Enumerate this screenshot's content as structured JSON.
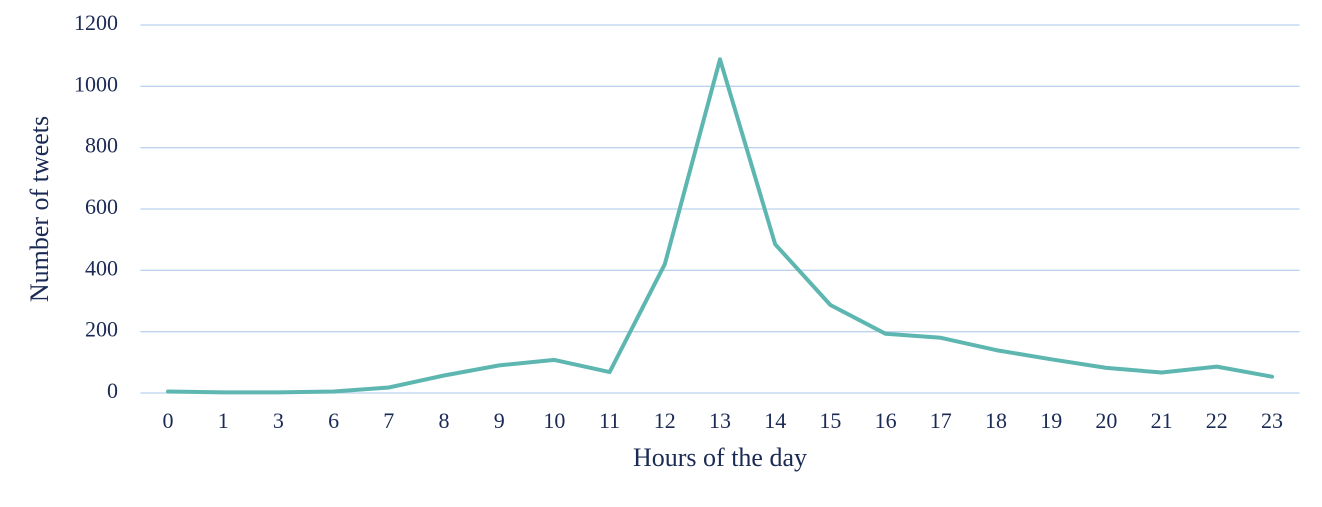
{
  "chart_data": {
    "type": "line",
    "x_label": "Hours of the day",
    "y_label": "Number of tweets",
    "categories": [
      "0",
      "1",
      "3",
      "6",
      "7",
      "8",
      "9",
      "10",
      "11",
      "12",
      "13",
      "14",
      "15",
      "16",
      "17",
      "18",
      "19",
      "20",
      "21",
      "22",
      "23"
    ],
    "values": [
      5,
      2,
      2,
      5,
      18,
      57,
      90,
      108,
      68,
      420,
      1088,
      485,
      287,
      193,
      180,
      140,
      110,
      82,
      67,
      86,
      53
    ],
    "color": "#5db7b0",
    "ylim": [
      0,
      1200
    ],
    "yticks": [
      0,
      200,
      400,
      600,
      800,
      1000,
      1200
    ],
    "grid": true
  }
}
